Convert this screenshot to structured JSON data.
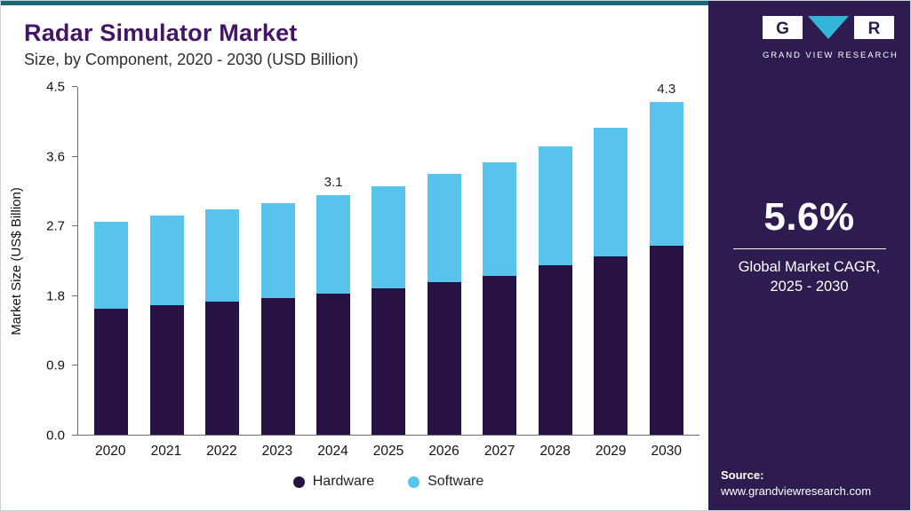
{
  "header": {
    "title": "Radar Simulator Market",
    "subtitle": "Size, by Component, 2020 - 2030 (USD Billion)"
  },
  "chart_data": {
    "type": "bar",
    "stacked": true,
    "title": "Radar Simulator Market Size, by Component, 2020 - 2030 (USD Billion)",
    "xlabel": "",
    "ylabel": "Market Size (US$ Billion)",
    "ylim": [
      0,
      4.5
    ],
    "grid": false,
    "legend_position": "bottom",
    "yticks": [
      {
        "label": "0.0",
        "value": 0
      },
      {
        "label": "0.9",
        "value": 0.9
      },
      {
        "label": "1.8",
        "value": 1.8
      },
      {
        "label": "2.7",
        "value": 2.7
      },
      {
        "label": "3.6",
        "value": 3.6
      },
      {
        "label": "4.5",
        "value": 4.5
      }
    ],
    "categories": [
      "2020",
      "2021",
      "2022",
      "2023",
      "2024",
      "2025",
      "2026",
      "2027",
      "2028",
      "2029",
      "2030"
    ],
    "series": [
      {
        "name": "Hardware",
        "color": "#281243",
        "values": [
          1.63,
          1.68,
          1.72,
          1.77,
          1.82,
          1.89,
          1.97,
          2.06,
          2.19,
          2.31,
          2.45
        ]
      },
      {
        "name": "Software",
        "color": "#58c4ee",
        "values": [
          1.13,
          1.16,
          1.2,
          1.23,
          1.28,
          1.33,
          1.4,
          1.47,
          1.54,
          1.66,
          1.85
        ]
      }
    ],
    "totals": [
      2.76,
      2.84,
      2.92,
      3.0,
      3.1,
      3.22,
      3.37,
      3.53,
      3.73,
      3.97,
      4.3
    ],
    "annotations": [
      {
        "category": "2024",
        "label": "3.1"
      },
      {
        "category": "2030",
        "label": "4.3"
      }
    ]
  },
  "sidebar": {
    "logo": {
      "letter_g": "G",
      "letter_r": "R",
      "brand": "GRAND VIEW RESEARCH"
    },
    "cagr": {
      "value": "5.6%",
      "line1": "Global Market CAGR,",
      "line2": "2025 - 2030"
    },
    "source": {
      "label": "Source:",
      "url": "www.grandviewresearch.com"
    }
  },
  "colors": {
    "accent_top": "#1b6877",
    "sidebar_bg": "#2e1c50",
    "title": "#441566",
    "hardware": "#281243",
    "software": "#58c4ee",
    "logo_triangle": "#33b5d8"
  }
}
